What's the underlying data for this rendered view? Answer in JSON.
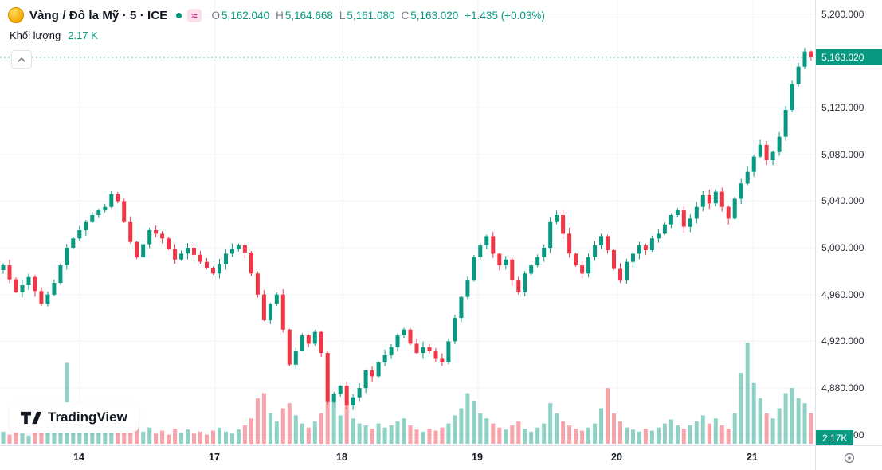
{
  "header": {
    "symbol_title": "Vàng / Đô la Mỹ · 5 · ICE",
    "market_status": "open",
    "delayed_badge": "≈",
    "ohlc": {
      "o_label": "O",
      "o": "5,162.040",
      "h_label": "H",
      "h": "5,164.668",
      "l_label": "L",
      "l": "5,161.080",
      "c_label": "C",
      "c": "5,163.020",
      "change": "+1.435 (+0.03%)"
    },
    "volume_label": "Khối lượng",
    "volume_value": "2.17 K"
  },
  "watermark": {
    "text": "TradingView"
  },
  "colors": {
    "up": "#089981",
    "down": "#f23645",
    "badge": "#089981",
    "grid": "#f0f3fa",
    "border": "#e0e3eb",
    "axis_text": "#2a2e39"
  },
  "chart_data": {
    "type": "candlestick",
    "title": "Vàng / Đô la Mỹ · 5 · ICE",
    "interval": "5",
    "exchange": "ICE",
    "open": 5162.04,
    "high": 5164.668,
    "low": 5161.08,
    "close": 5163.02,
    "change_text": "+1.435 (+0.03%)",
    "last_price": 5163.02,
    "last_price_label": "5,163.020",
    "last_volume_label": "2.17K",
    "volume_current": "2.17 K",
    "price_min": 4831,
    "price_max": 5212,
    "grid": true,
    "legend_position": "top-left",
    "y_ticks": [
      5200,
      5160,
      5120,
      5080,
      5040,
      5000,
      4960,
      4920,
      4880,
      4840
    ],
    "y_tick_labels": [
      "5,200.000",
      "5,160.000",
      "5,120.000",
      "5,080.000",
      "5,040.000",
      "5,000.000",
      "4,960.000",
      "4,920.000",
      "4,880.000",
      "4,840.000"
    ],
    "x_tick_labels": [
      "14",
      "17",
      "18",
      "19",
      "20",
      "21"
    ],
    "x_tick_pos": [
      0.098,
      0.264,
      0.421,
      0.587,
      0.758,
      0.925
    ],
    "closes": [
      4985,
      4973,
      4962,
      4968,
      4975,
      4963,
      4952,
      4960,
      4970,
      4985,
      5000,
      5008,
      5015,
      5022,
      5028,
      5032,
      5035,
      5046,
      5040,
      5022,
      5005,
      4992,
      5003,
      5015,
      5012,
      5008,
      4999,
      4990,
      4995,
      5000,
      4994,
      4988,
      4983,
      4978,
      4986,
      4995,
      4999,
      5002,
      4996,
      4978,
      4960,
      4938,
      4952,
      4960,
      4930,
      4900,
      4912,
      4925,
      4918,
      4928,
      4910,
      4868,
      4875,
      4882,
      4865,
      4872,
      4880,
      4895,
      4890,
      4902,
      4908,
      4915,
      4925,
      4930,
      4918,
      4910,
      4915,
      4912,
      4905,
      4902,
      4920,
      4940,
      4958,
      4972,
      4992,
      5002,
      5010,
      4995,
      4985,
      4990,
      4972,
      4962,
      4978,
      4985,
      4992,
      5000,
      5022,
      5028,
      5012,
      4995,
      4985,
      4978,
      4992,
      5002,
      5010,
      4998,
      4982,
      4972,
      4988,
      4995,
      5002,
      4998,
      5008,
      5012,
      5020,
      5028,
      5032,
      5018,
      5025,
      5035,
      5045,
      5038,
      5048,
      5035,
      5025,
      5042,
      5055,
      5065,
      5078,
      5088,
      5075,
      5082,
      5095,
      5118,
      5140,
      5155,
      5168,
      5163.02
    ],
    "volumes": [
      0.12,
      0.09,
      0.15,
      0.1,
      0.08,
      0.14,
      0.18,
      0.12,
      0.22,
      0.35,
      0.8,
      0.3,
      0.18,
      0.25,
      0.38,
      0.22,
      0.15,
      0.28,
      0.2,
      0.14,
      0.18,
      0.24,
      0.12,
      0.16,
      0.1,
      0.13,
      0.09,
      0.15,
      0.11,
      0.14,
      0.1,
      0.12,
      0.09,
      0.13,
      0.16,
      0.12,
      0.1,
      0.14,
      0.18,
      0.25,
      0.45,
      0.5,
      0.3,
      0.22,
      0.35,
      0.4,
      0.28,
      0.2,
      0.16,
      0.22,
      0.3,
      0.75,
      0.45,
      0.28,
      0.38,
      0.25,
      0.2,
      0.18,
      0.15,
      0.2,
      0.16,
      0.18,
      0.22,
      0.25,
      0.18,
      0.14,
      0.12,
      0.15,
      0.13,
      0.16,
      0.2,
      0.28,
      0.35,
      0.5,
      0.42,
      0.3,
      0.25,
      0.2,
      0.16,
      0.14,
      0.18,
      0.22,
      0.15,
      0.12,
      0.16,
      0.2,
      0.4,
      0.3,
      0.22,
      0.18,
      0.15,
      0.13,
      0.16,
      0.2,
      0.35,
      0.55,
      0.3,
      0.22,
      0.16,
      0.14,
      0.12,
      0.15,
      0.13,
      0.16,
      0.2,
      0.24,
      0.18,
      0.15,
      0.18,
      0.22,
      0.28,
      0.2,
      0.25,
      0.18,
      0.15,
      0.3,
      0.7,
      1.0,
      0.6,
      0.45,
      0.3,
      0.25,
      0.35,
      0.5,
      0.55,
      0.45,
      0.4,
      0.3
    ]
  }
}
